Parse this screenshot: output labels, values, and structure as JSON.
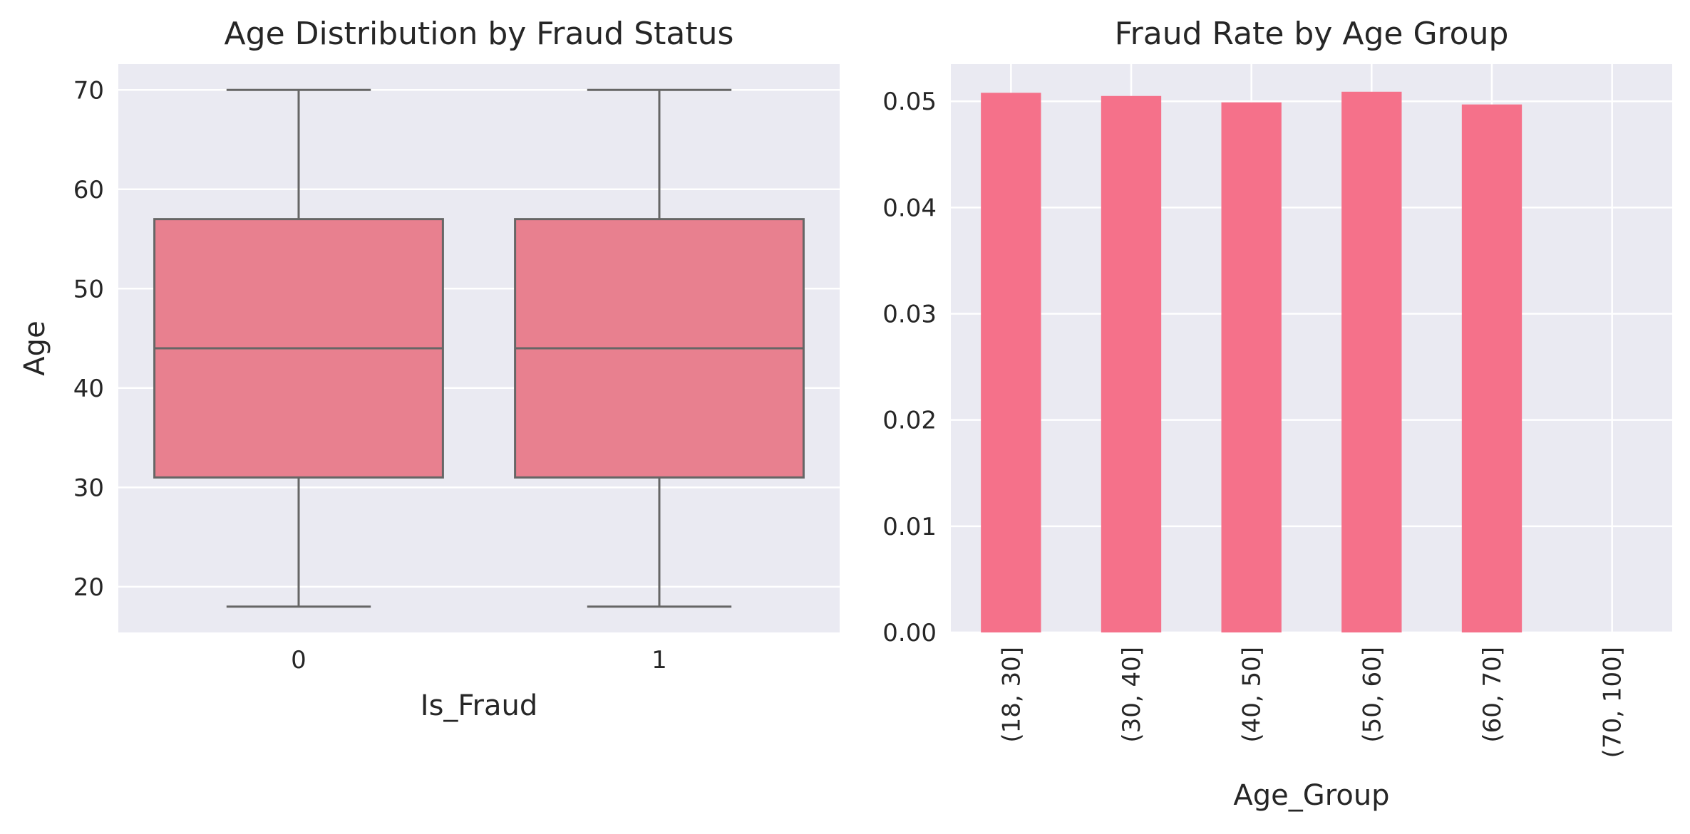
{
  "chart_data": [
    {
      "type": "boxplot",
      "title": "Age Distribution by Fraud Status",
      "xlabel": "Is_Fraud",
      "ylabel": "Age",
      "categories": [
        "0",
        "1"
      ],
      "boxes": [
        {
          "category": "0",
          "whisker_low": 18,
          "q1": 31,
          "median": 44,
          "q3": 57,
          "whisker_high": 70
        },
        {
          "category": "1",
          "whisker_low": 18,
          "q1": 31,
          "median": 44,
          "q3": 57,
          "whisker_high": 70
        }
      ],
      "ylim": [
        15.4,
        72.6
      ],
      "yticks": [
        20,
        30,
        40,
        50,
        60,
        70
      ],
      "grid": true,
      "color": "#e8808f"
    },
    {
      "type": "bar",
      "title": "Fraud Rate by Age Group",
      "xlabel": "Age_Group",
      "ylabel": "",
      "categories": [
        "(18, 30]",
        "(30, 40]",
        "(40, 50]",
        "(50, 60]",
        "(60, 70]",
        "(70, 100]"
      ],
      "values": [
        0.0508,
        0.0505,
        0.0499,
        0.0509,
        0.0497,
        0.0
      ],
      "ylim": [
        0,
        0.0535
      ],
      "yticks": [
        "0.00",
        "0.01",
        "0.02",
        "0.03",
        "0.04",
        "0.05"
      ],
      "grid": true,
      "color": "#f5718a"
    }
  ]
}
